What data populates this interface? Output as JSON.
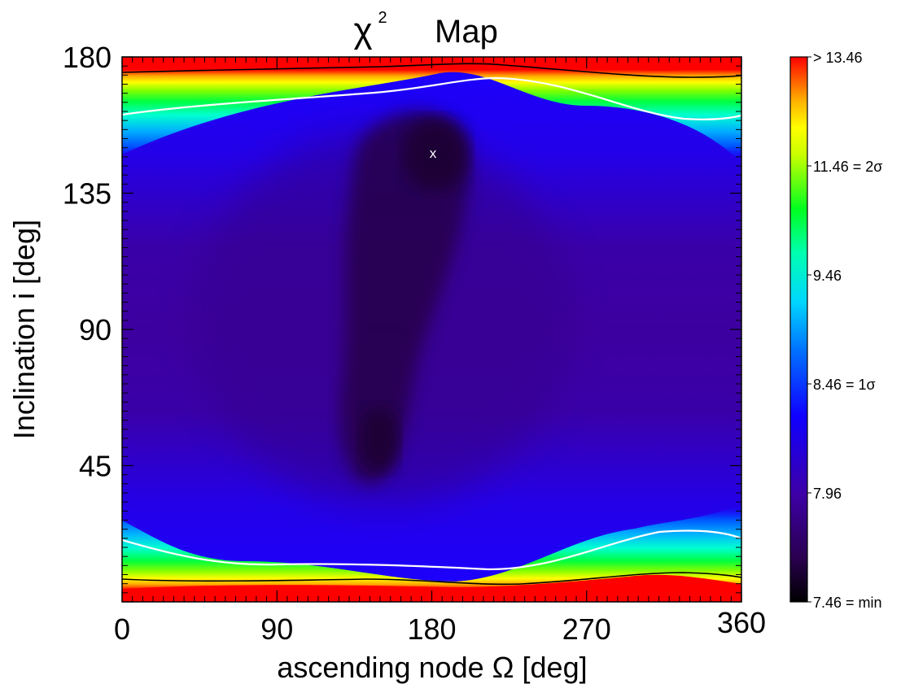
{
  "chart_data": {
    "type": "heatmap",
    "title": "Map",
    "title_symbol": "χ",
    "title_superscript": "2",
    "xlabel": "ascending node Ω [deg]",
    "ylabel": "Inclination i [deg]",
    "xlim": [
      0,
      360
    ],
    "ylim": [
      0,
      180
    ],
    "x_ticks": [
      0,
      90,
      180,
      270,
      360
    ],
    "y_ticks": [
      45,
      90,
      135,
      180
    ],
    "x_tick_labels": [
      "0",
      "90",
      "180",
      "270",
      "360"
    ],
    "y_tick_labels": [
      "45",
      "90",
      "135",
      "180"
    ],
    "colorbar": {
      "min": 7.46,
      "max": 13.46,
      "labels": [
        {
          "value": 13.46,
          "text": "> 13.46"
        },
        {
          "value": 11.46,
          "text": "11.46 = 2σ"
        },
        {
          "value": 9.46,
          "text": "9.46"
        },
        {
          "value": 8.46,
          "text": "8.46 = 1σ"
        },
        {
          "value": 7.96,
          "text": "7.96"
        },
        {
          "value": 7.46,
          "text": "7.46 = min"
        }
      ]
    },
    "minimum_marker": {
      "x": 180,
      "y": 147,
      "label": "x"
    },
    "contours": [
      {
        "level": 8.46,
        "color": "#ffffff"
      },
      {
        "level": 11.46,
        "color": "#000000"
      }
    ],
    "colors": {
      "min": "#000000",
      "low": "#330066",
      "mid": "#1a00ff",
      "cyan": "#00e0ff",
      "green": "#00ff00",
      "yellow": "#ffff00",
      "max": "#ff0000"
    }
  }
}
